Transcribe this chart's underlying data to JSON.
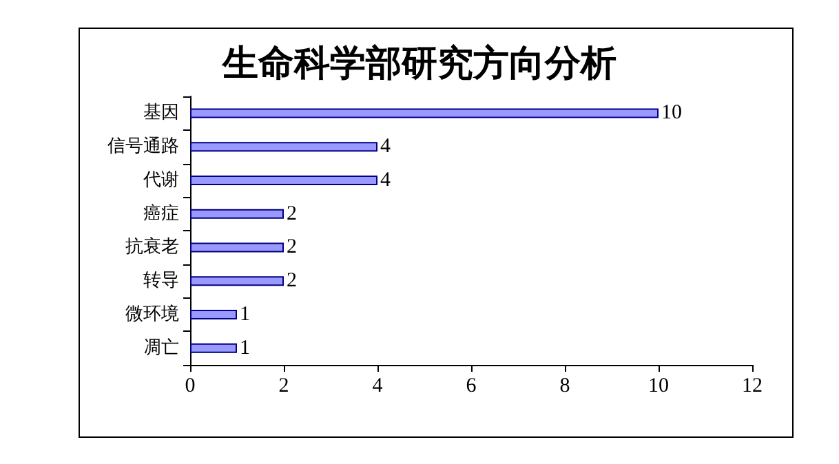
{
  "chart_data": {
    "type": "bar",
    "orientation": "horizontal",
    "title": "生命科学部研究方向分析",
    "categories": [
      "基因",
      "信号通路",
      "代谢",
      "癌症",
      "抗衰老",
      "转导",
      "微环境",
      "凋亡"
    ],
    "values": [
      10,
      4,
      4,
      2,
      2,
      2,
      1,
      1
    ],
    "color": "#9999ff",
    "xlim": [
      0,
      12
    ],
    "xticks": [
      0,
      2,
      4,
      6,
      8,
      10,
      12
    ],
    "grid": false,
    "data_labels": true
  }
}
